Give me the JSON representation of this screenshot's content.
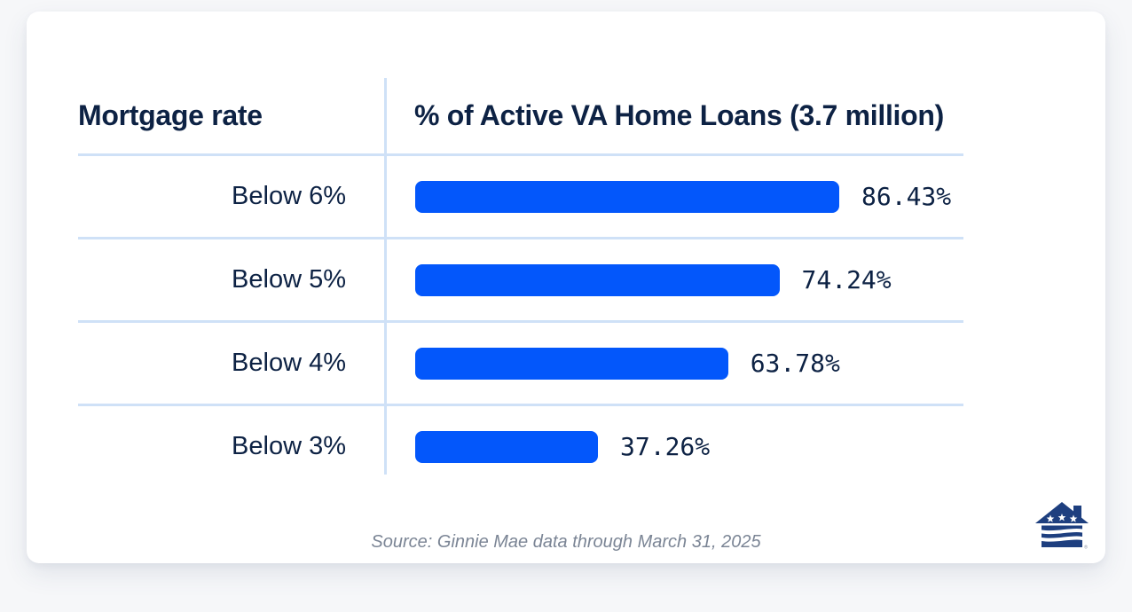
{
  "table": {
    "col1_header": "Mortgage rate",
    "col2_header": "% of Active VA Home Loans (3.7 million)"
  },
  "chart_data": {
    "type": "bar",
    "orientation": "horizontal",
    "title": "% of Active VA Home Loans (3.7 million)",
    "xlabel": "Mortgage rate",
    "categories": [
      "Below 6%",
      "Below 5%",
      "Below 4%",
      "Below 3%"
    ],
    "values": [
      86.43,
      74.24,
      63.78,
      37.26
    ],
    "value_labels": [
      "86.43%",
      "74.24%",
      "63.78%",
      "37.26%"
    ],
    "xlim": [
      0,
      100
    ],
    "grid": "horizontal row dividers only",
    "legend": "none",
    "bar_color": "#0357fb"
  },
  "footer": {
    "source": "Source: Ginnie Mae data through March 31, 2025",
    "logo": "house-with-stars-and-flag-waves-logo",
    "registered_mark": "®"
  },
  "colors": {
    "navy_text": "#0d2244",
    "bar_blue": "#0357fb",
    "divider_blue": "#cfe1f7",
    "source_gray": "#7b8595",
    "logo_navy": "#1e3f7f",
    "page_bg": "#f6f7f9",
    "card_bg": "#ffffff"
  }
}
